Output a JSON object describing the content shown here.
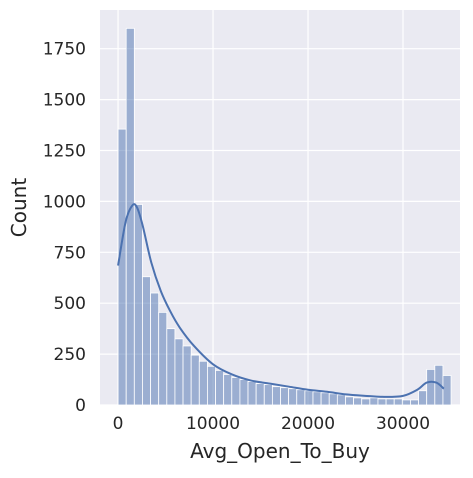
{
  "chart_data": {
    "type": "histogram",
    "xlabel": "Avg_Open_To_Buy",
    "ylabel": "Count",
    "xlim": [
      -1900,
      36000
    ],
    "ylim": [
      0,
      1940
    ],
    "xticks": [
      0,
      10000,
      20000,
      30000
    ],
    "xtick_labels": [
      "0",
      "10000",
      "20000",
      "30000"
    ],
    "yticks": [
      0,
      250,
      500,
      750,
      1000,
      1250,
      1500,
      1750
    ],
    "ytick_labels": [
      "0",
      "250",
      "500",
      "750",
      "1000",
      "1250",
      "1500",
      "1750"
    ],
    "grid": true,
    "bin_start": 3,
    "bin_width": 855,
    "counts": [
      1355,
      1850,
      985,
      630,
      550,
      455,
      375,
      325,
      290,
      245,
      215,
      190,
      170,
      150,
      135,
      125,
      115,
      105,
      100,
      90,
      85,
      80,
      75,
      70,
      65,
      60,
      55,
      50,
      40,
      35,
      30,
      35,
      30,
      30,
      30,
      25,
      25,
      70,
      175,
      195,
      145
    ],
    "kde": {
      "x": [
        3,
        800,
        1500,
        2000,
        2600,
        3500,
        4500,
        5500,
        6500,
        8000,
        10000,
        12000,
        14000,
        16000,
        18000,
        20000,
        22000,
        24000,
        26000,
        28000,
        30000,
        31500,
        32500,
        33500,
        34300
      ],
      "y": [
        685,
        900,
        980,
        970,
        880,
        700,
        560,
        460,
        380,
        290,
        200,
        150,
        120,
        105,
        90,
        75,
        65,
        52,
        45,
        40,
        45,
        75,
        110,
        110,
        80
      ]
    },
    "colors": {
      "background": "#eaeaf2",
      "grid": "#ffffff",
      "bar_fill": "#4c72b0",
      "bar_fill_opacity": 0.5,
      "bar_edge": "#ffffff",
      "kde_line": "#4c72b0"
    }
  }
}
